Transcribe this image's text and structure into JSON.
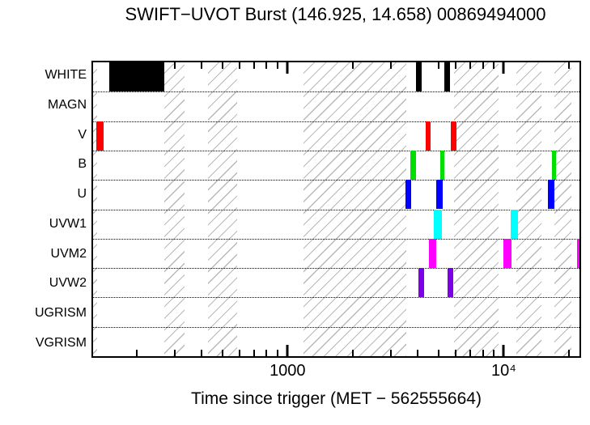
{
  "figure": {
    "title": "SWIFT−UVOT Burst (146.925, 14.658) 00869494000",
    "xlabel": "Time since trigger (MET − 562555664)"
  },
  "chart_data": {
    "type": "bar",
    "subtype": "horizontal interval timeline of UVOT filter exposure windows",
    "title": "SWIFT−UVOT Burst (146.925, 14.658) 00869494000",
    "xlabel": "Time since trigger (MET − 562555664)",
    "ylabel": "",
    "x_scale": "log",
    "xlim": [
      126,
      22400
    ],
    "x_major_ticks": [
      {
        "value": 1000,
        "label": "1000"
      },
      {
        "value": 10000,
        "label": "10⁴"
      }
    ],
    "x_minor_ticks": [
      200,
      300,
      400,
      500,
      600,
      700,
      800,
      900,
      2000,
      3000,
      4000,
      5000,
      6000,
      7000,
      8000,
      9000,
      20000
    ],
    "categories": [
      "WHITE",
      "MAGN",
      "V",
      "B",
      "U",
      "UVW1",
      "UVM2",
      "UVW2",
      "UGRISM",
      "VGRISM"
    ],
    "series": [
      {
        "name": "WHITE",
        "color": "#000000",
        "intervals": [
          [
            150,
            268
          ],
          [
            3930,
            4180
          ],
          [
            5310,
            5640
          ]
        ]
      },
      {
        "name": "MAGN",
        "color": "#000000",
        "intervals": []
      },
      {
        "name": "V",
        "color": "#ff0000",
        "intervals": [
          [
            130,
            141
          ],
          [
            4360,
            4590
          ],
          [
            5680,
            6030
          ]
        ]
      },
      {
        "name": "B",
        "color": "#00e000",
        "intervals": [
          [
            3710,
            3930
          ],
          [
            5090,
            5310
          ],
          [
            16710,
            17440
          ]
        ]
      },
      {
        "name": "U",
        "color": "#0000ff",
        "intervals": [
          [
            3520,
            3740
          ],
          [
            4870,
            5220
          ],
          [
            16020,
            17150
          ]
        ]
      },
      {
        "name": "UVW1",
        "color": "#00ffff",
        "intervals": [
          [
            4750,
            5170
          ],
          [
            10800,
            11670
          ]
        ]
      },
      {
        "name": "UVM2",
        "color": "#ff00ff",
        "intervals": [
          [
            4510,
            4870
          ],
          [
            10000,
            10900
          ],
          [
            21800,
            22400
          ]
        ]
      },
      {
        "name": "UVW2",
        "color": "#7d00e6",
        "intervals": [
          [
            4040,
            4290
          ],
          [
            5490,
            5830
          ]
        ]
      },
      {
        "name": "UGRISM",
        "color": "#000000",
        "intervals": []
      },
      {
        "name": "VGRISM",
        "color": "#000000",
        "intervals": []
      }
    ],
    "hatched_gap_bands": [
      [
        126,
        131
      ],
      [
        268,
        334
      ],
      [
        428,
        583
      ],
      [
        1187,
        3550
      ],
      [
        5880,
        9420
      ],
      [
        11470,
        14950
      ],
      [
        17150,
        20520
      ]
    ],
    "grid": "dotted horizontal separators between category rows",
    "legend": "none"
  },
  "style": {
    "bg": "#ffffff",
    "frame_color": "#000000",
    "hatch_line_color": "#b9b9b9"
  }
}
